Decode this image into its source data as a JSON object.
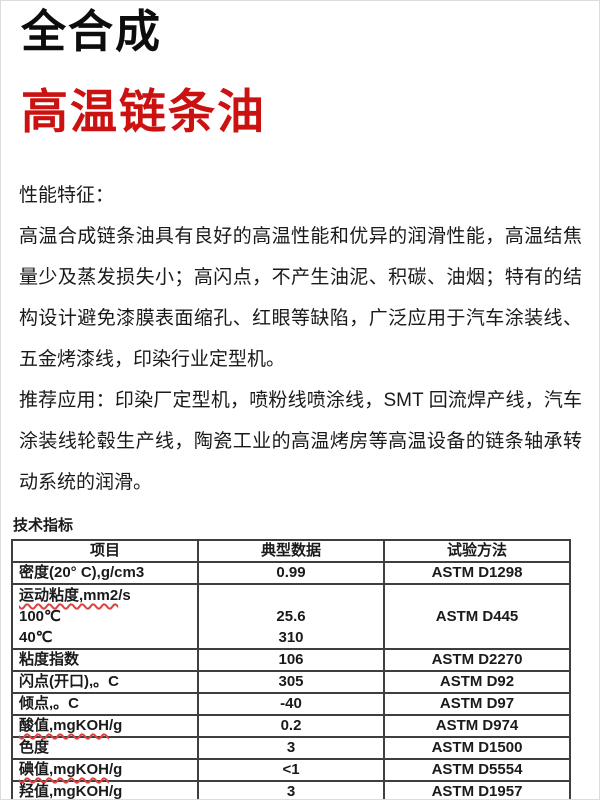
{
  "header": {
    "series": "全合成",
    "product": "高温链条油",
    "accent_color": "#cc1111"
  },
  "sections": {
    "performance_heading": "性能特征：",
    "performance_text": "高温合成链条油具有良好的高温性能和优异的润滑性能，高温结焦量少及蒸发损失小；高闪点，不产生油泥、积碳、油烟；特有的结构设计避免漆膜表面缩孔、红眼等缺陷，广泛应用于汽车涂装线、五金烤漆线，印染行业定型机。",
    "application_text": "推荐应用：印染厂定型机，喷粉线喷涂线，SMT 回流焊产线，汽车涂装线轮毂生产线，陶瓷工业的高温烤房等高温设备的链条轴承转动系统的润滑。"
  },
  "spec_table": {
    "caption": "技术指标",
    "spellcheck_color": "#e04040",
    "headers": [
      "项目",
      "典型数据",
      "试验方法"
    ],
    "rows": [
      {
        "item": "密度(20° C),g/cm3",
        "value": "0.99",
        "method": "ASTM D1298"
      },
      {
        "item_lines": [
          "运动粘度,mm2/s",
          "100℃",
          "40℃"
        ],
        "underline": "运动粘度,mm2",
        "value_lines": [
          "",
          "25.6",
          "310"
        ],
        "method": "ASTM D445"
      },
      {
        "item": "粘度指数",
        "value": "106",
        "method": "ASTM D2270"
      },
      {
        "item": "闪点(开口),。C",
        "value": "305",
        "method": "ASTM D92"
      },
      {
        "item": "倾点,。C",
        "value": "-40",
        "method": "ASTM D97"
      },
      {
        "item": "酸值,mgKOH/g",
        "underline": "酸值,mgKOH",
        "value": "0.2",
        "method": "ASTM D974"
      },
      {
        "item": "色度",
        "value": "3",
        "method": "ASTM D1500"
      },
      {
        "item": "碘值,mgKOH/g",
        "underline": "碘值,mgKOH",
        "value": "<1",
        "method": "ASTM D5554"
      },
      {
        "item": "羟值,mgKOH/g",
        "underline": "羟值,mgKOH",
        "value": "3",
        "method": "ASTM D1957"
      }
    ]
  }
}
